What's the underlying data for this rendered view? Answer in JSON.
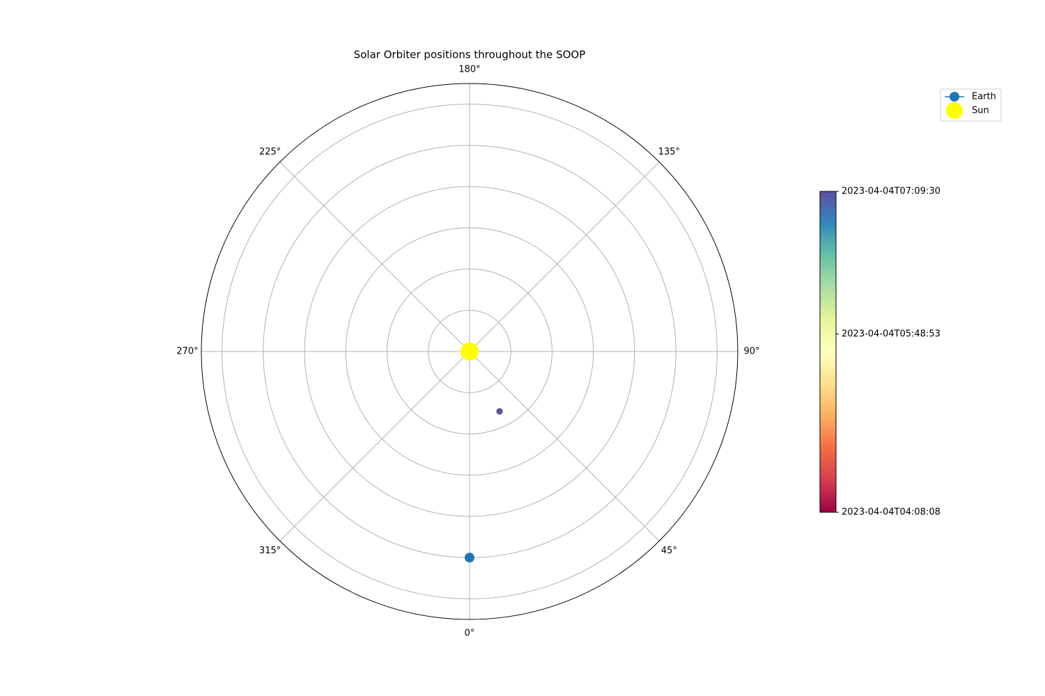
{
  "chart_data": {
    "type": "polar",
    "title": "Solar Orbiter positions throughout the SOOP",
    "rlim": [
      0,
      1.3
    ],
    "rticks": [
      0.2,
      0.4,
      0.6,
      0.8,
      1.0,
      1.2
    ],
    "thetaticks": [
      {
        "value": 0,
        "label": "0°"
      },
      {
        "value": 45,
        "label": "45°"
      },
      {
        "value": 90,
        "label": "90°"
      },
      {
        "value": 135,
        "label": "135°"
      },
      {
        "value": 180,
        "label": "180°"
      },
      {
        "value": 225,
        "label": "225°"
      },
      {
        "value": 270,
        "label": "270°"
      },
      {
        "value": 315,
        "label": "315°"
      }
    ],
    "grid": true,
    "series": [
      {
        "theta": [
          26.6
        ],
        "r": [
          0.325
        ],
        "time": [
          "2023-04-04T07:09:30"
        ]
      },
      {
        "name": "Earth",
        "color": "#1f77b4",
        "theta": [
          0
        ],
        "r": [
          1.0
        ]
      },
      {
        "name": "Sun",
        "color": "#ffff00",
        "theta": [
          0
        ],
        "r": [
          0
        ]
      }
    ],
    "legend": "upper right",
    "colorbar": {
      "clim": [
        "2023-04-04T04:08:08",
        "2023-04-04T07:09:30"
      ],
      "ticks": [
        "2023-04-04T04:08:08",
        "2023-04-04T05:48:53",
        "2023-04-04T07:09:30"
      ],
      "colormap": [
        "#9e0142",
        "#d53e4f",
        "#f46d43",
        "#fdae61",
        "#fee08b",
        "#ffffbf",
        "#e6f598",
        "#abdda4",
        "#66c2a5",
        "#3288bd",
        "#5e4fa2"
      ]
    }
  }
}
